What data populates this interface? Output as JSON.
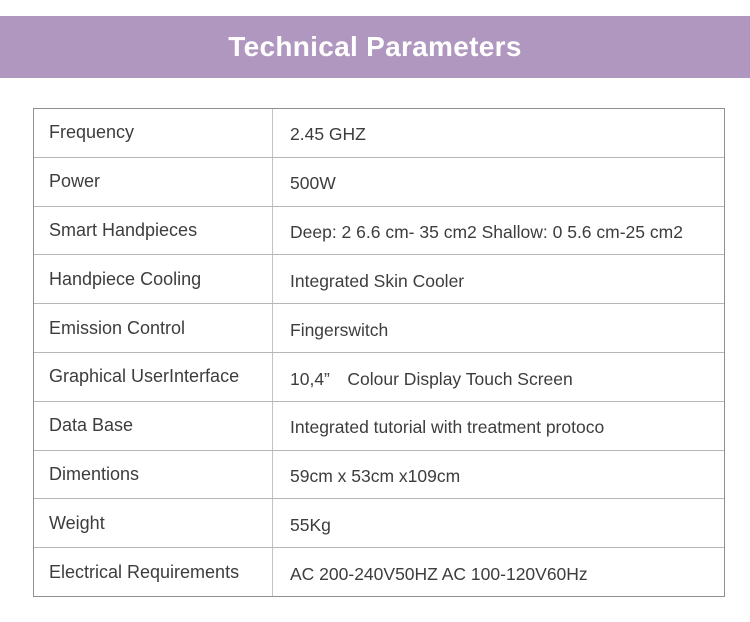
{
  "header": {
    "title": "Technical Parameters",
    "background_color": "#b097c0",
    "text_color": "#ffffff"
  },
  "table": {
    "rows": [
      {
        "label": "Frequency",
        "value": "2.45 GHZ"
      },
      {
        "label": "Power",
        "value": "500W"
      },
      {
        "label": "Smart Handpieces",
        "value": "Deep: 2 6.6 cm- 35 cm2 Shallow: 0 5.6 cm-25 cm2"
      },
      {
        "label": "Handpiece Cooling",
        "value": "Integrated Skin Cooler"
      },
      {
        "label": "Emission Control",
        "value": "Fingerswitch"
      },
      {
        "label": "Graphical UserInterface",
        "value": "10,4”　Colour Display Touch Screen"
      },
      {
        "label": "Data Base",
        "value": "Integrated tutorial with treatment protoco"
      },
      {
        "label": "Dimentions",
        "value": "59cm x 53cm x109cm"
      },
      {
        "label": "Weight",
        "value": "55Kg"
      },
      {
        "label": "Electrical Requirements",
        "value": "AC 200-240V50HZ AC 100-120V60Hz"
      }
    ]
  }
}
